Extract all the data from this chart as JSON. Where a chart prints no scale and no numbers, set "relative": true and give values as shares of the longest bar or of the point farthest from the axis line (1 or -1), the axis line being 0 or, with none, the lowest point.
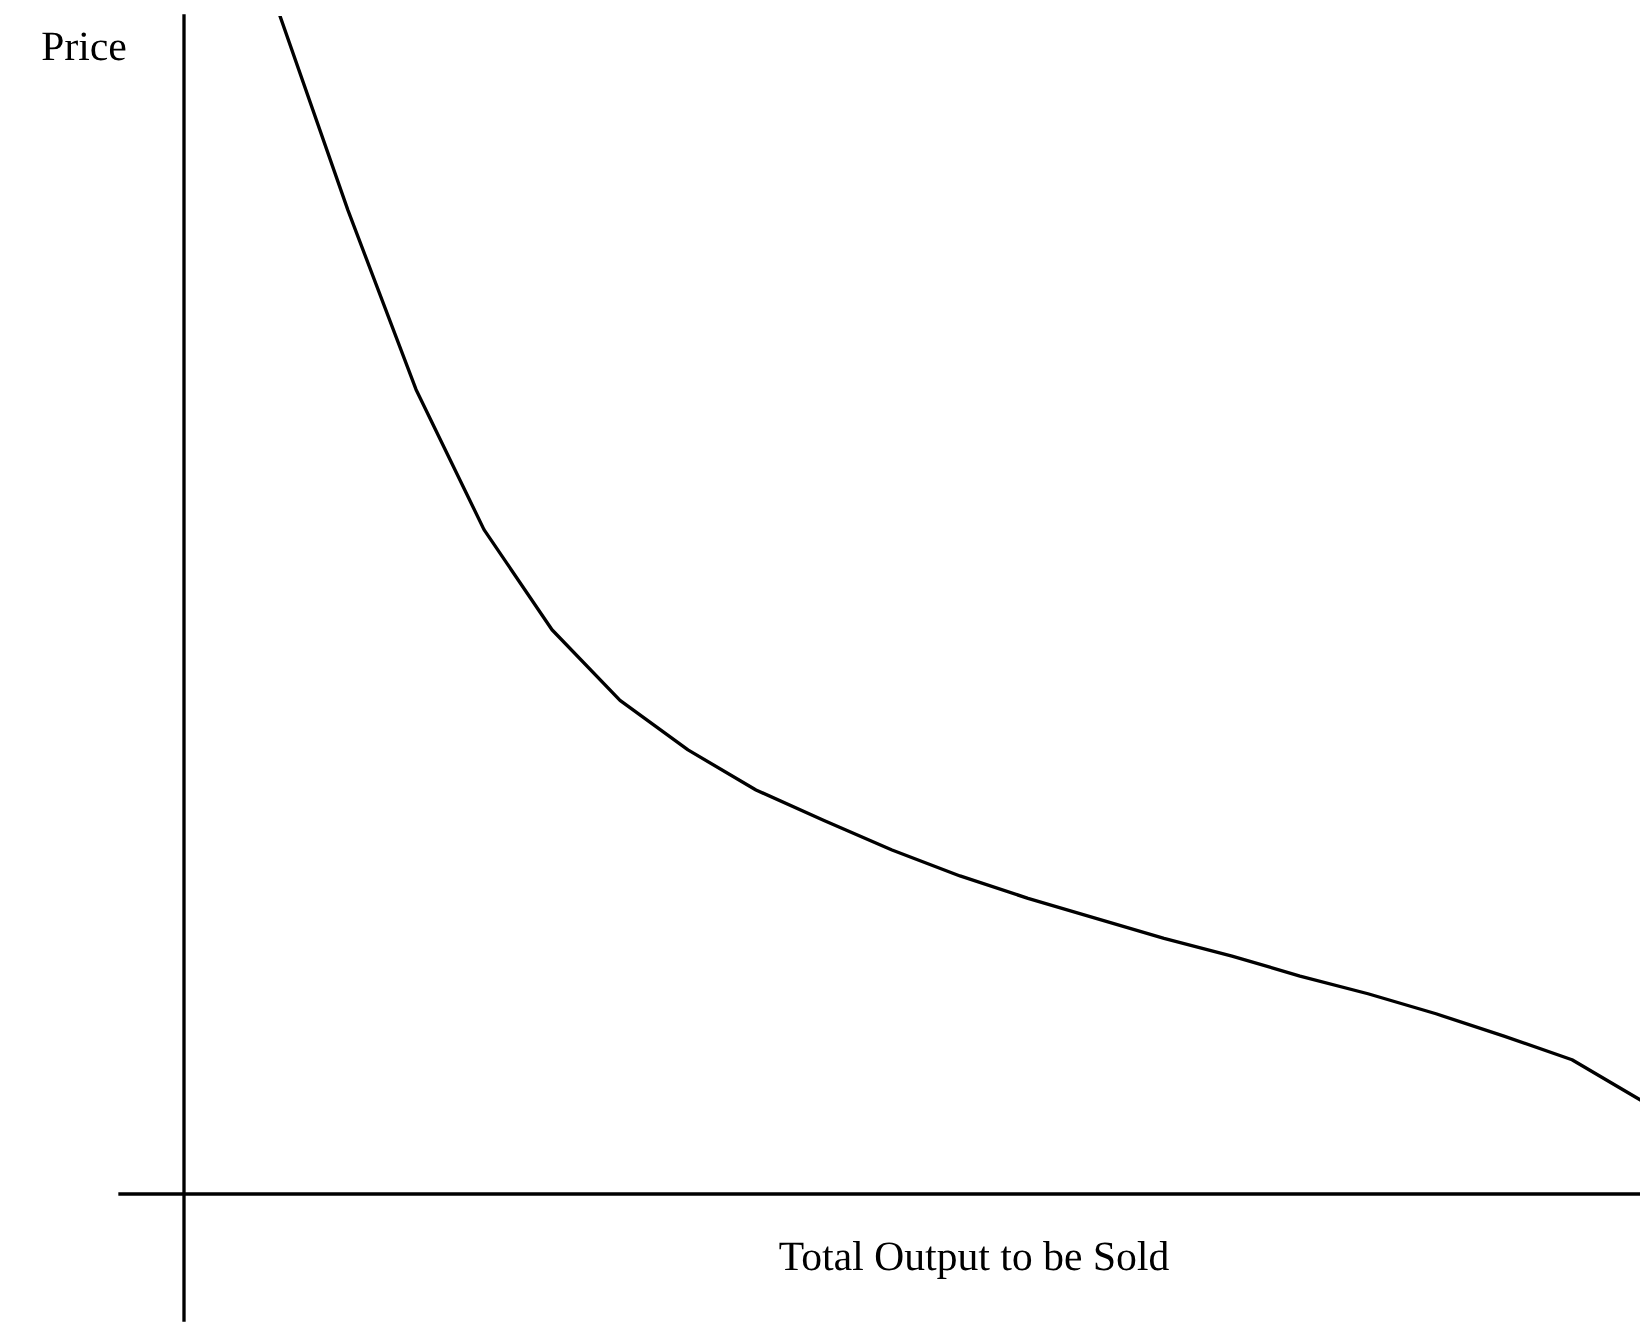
{
  "chart_data": {
    "type": "line",
    "relative": true,
    "xlabel": "Total Output to be Sold",
    "ylabel": "Price",
    "categories": [
      null,
      null,
      null,
      null,
      null,
      null,
      null,
      null,
      null,
      null,
      null,
      null,
      null,
      null,
      null,
      null,
      null,
      null,
      null,
      null,
      null
    ],
    "series": [
      {
        "color": "#000000",
        "values": [
          1.0,
          0.835,
          0.683,
          0.564,
          0.479,
          0.419,
          0.377,
          0.343,
          0.317,
          0.292,
          0.27,
          0.251,
          0.234,
          0.217,
          0.202,
          0.185,
          0.17,
          0.153,
          0.134,
          0.114,
          0.08
        ]
      }
    ],
    "grid": false,
    "legend": false,
    "marker": "none",
    "line_style": "solid"
  }
}
